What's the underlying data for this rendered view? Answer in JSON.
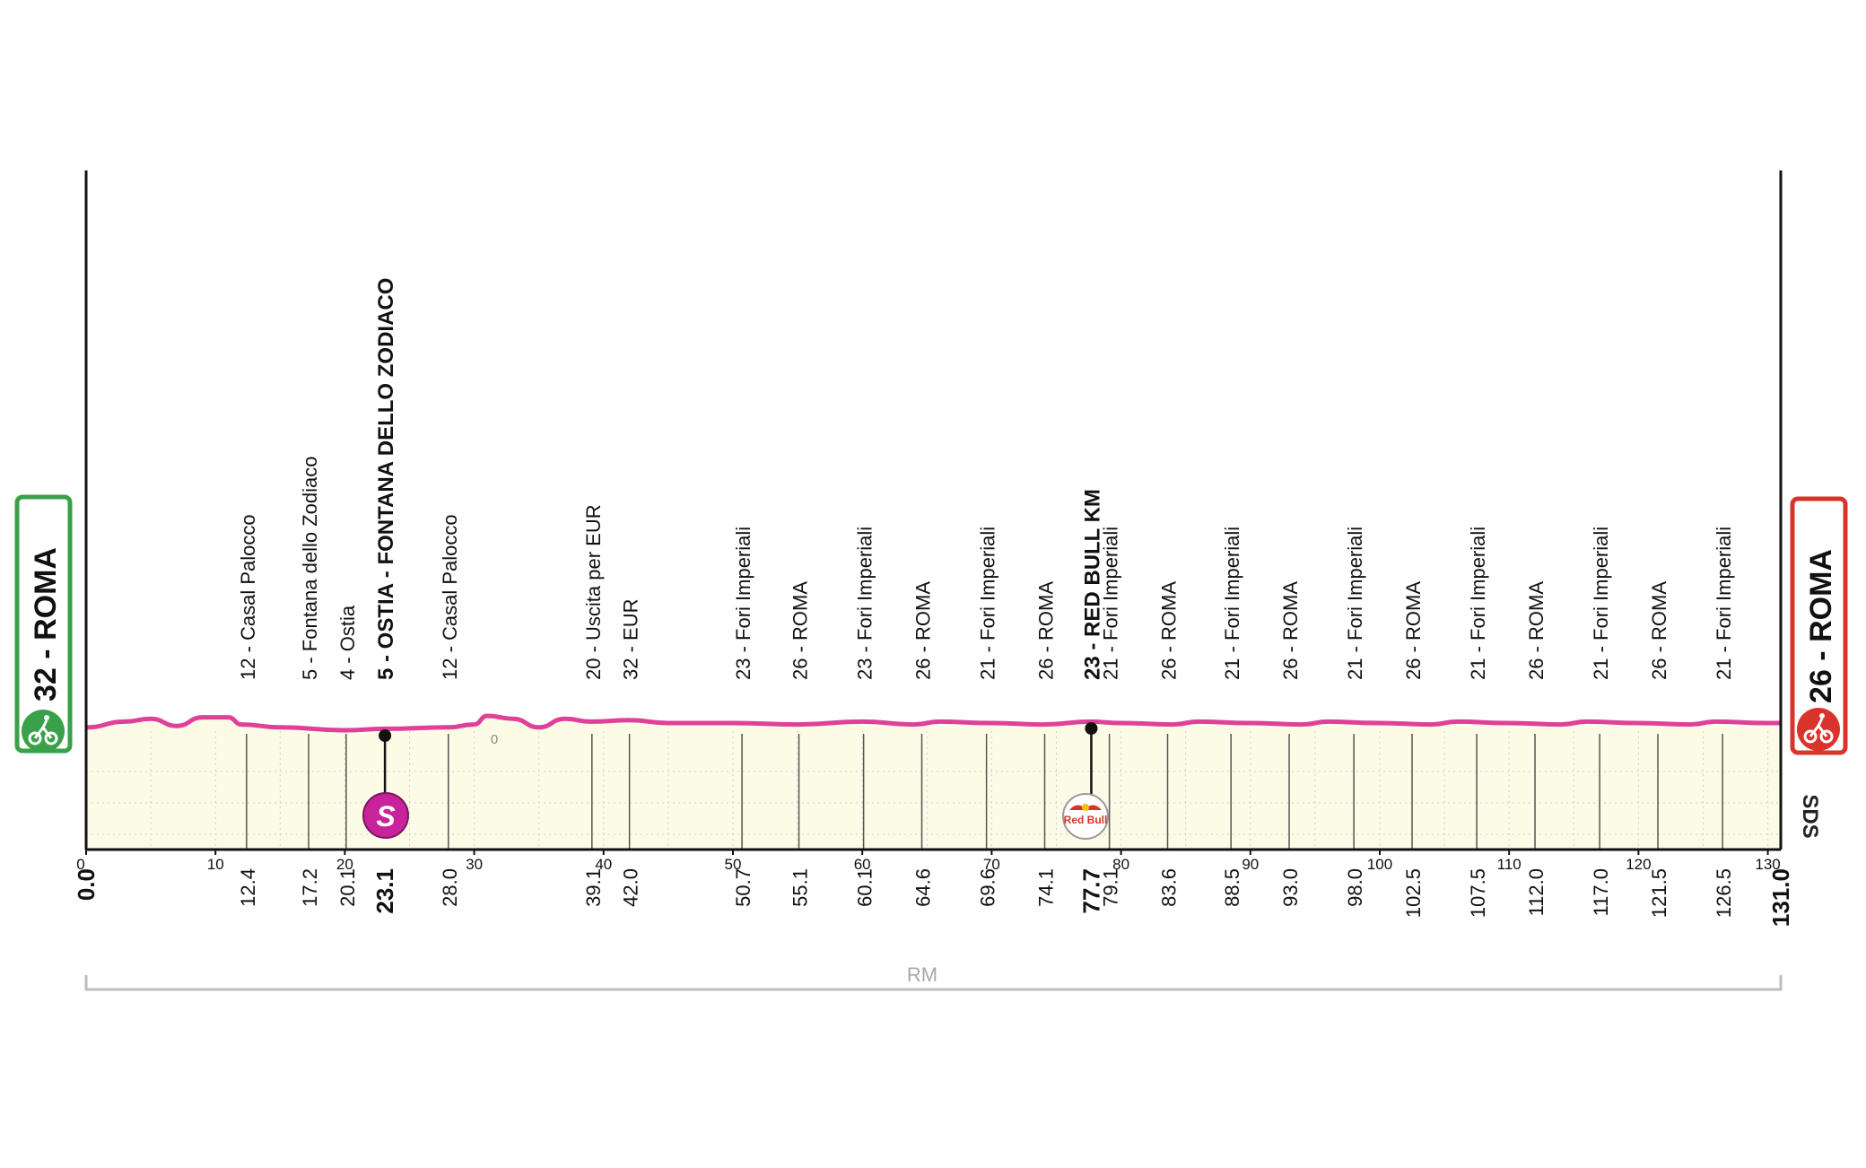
{
  "colors": {
    "profile_line": "#e0409a",
    "profile_fill": "#fcfbe6",
    "start_green": "#3aa14a",
    "finish_red": "#d9342b",
    "sprint_magenta": "#c8239a",
    "axis": "#111111",
    "route_bar": "#bcbcbc"
  },
  "start_badge": {
    "text": "32 - ROMA",
    "icon": "green-cyclist-icon"
  },
  "finish_badge": {
    "text": "26 - ROMA",
    "icon": "red-cyclist-icon"
  },
  "sprint_badge": {
    "text": "S",
    "icon": "sprint-icon"
  },
  "redbull_badge": {
    "text": "Red Bull",
    "icon": "red-bull-logo"
  },
  "sds_text": "SDS",
  "zero_mark": "0",
  "region_text": "RM",
  "chart_data": {
    "type": "area",
    "title": "",
    "xlabel": "",
    "ylabel": "",
    "x_range": [
      0,
      131
    ],
    "km_ticks": [
      "0",
      "10",
      "20",
      "30",
      "40",
      "50",
      "60",
      "70",
      "80",
      "90",
      "100",
      "110",
      "120",
      "130"
    ],
    "grid": true,
    "profile_km": [
      0,
      3,
      5,
      7,
      9,
      11,
      12,
      15,
      20,
      23.1,
      28,
      30,
      31,
      33,
      35,
      37,
      39,
      42,
      45,
      50,
      55,
      60,
      64,
      66,
      70,
      74,
      77.7,
      80,
      84,
      86,
      90,
      94,
      96,
      100,
      104,
      106,
      110,
      114,
      116,
      120,
      124,
      126,
      130,
      131
    ],
    "profile_elev": [
      12,
      16,
      18,
      13,
      19,
      19,
      14,
      12,
      10,
      11,
      12,
      14,
      20,
      18,
      12,
      18,
      16,
      17,
      15,
      15,
      14,
      16,
      14,
      16,
      15,
      14,
      16,
      15,
      14,
      16,
      15,
      14,
      16,
      15,
      14,
      16,
      15,
      14,
      16,
      15,
      14,
      16,
      15,
      15
    ],
    "waypoints": [
      {
        "km": "0.0",
        "label": "",
        "bold": true
      },
      {
        "km": "12.4",
        "label": "12 - Casal Palocco",
        "bold": false
      },
      {
        "km": "17.2",
        "label": "5 - Fontana dello Zodiaco",
        "bold": false
      },
      {
        "km": "20.1",
        "label": "4 - Ostia",
        "bold": false
      },
      {
        "km": "23.1",
        "label": "5 - OSTIA - FONTANA DELLO ZODIACO",
        "bold": true
      },
      {
        "km": "28.0",
        "label": "12 - Casal Palocco",
        "bold": false
      },
      {
        "km": "39.1",
        "label": "20 - Uscita per EUR",
        "bold": false
      },
      {
        "km": "42.0",
        "label": "32 - EUR",
        "bold": false
      },
      {
        "km": "50.7",
        "label": "23 - Fori Imperiali",
        "bold": false
      },
      {
        "km": "55.1",
        "label": "26 - ROMA",
        "bold": false
      },
      {
        "km": "60.1",
        "label": "23 - Fori Imperiali",
        "bold": false
      },
      {
        "km": "64.6",
        "label": "26 - ROMA",
        "bold": false
      },
      {
        "km": "69.6",
        "label": "21 - Fori Imperiali",
        "bold": false
      },
      {
        "km": "74.1",
        "label": "26 - ROMA",
        "bold": false
      },
      {
        "km": "77.7",
        "label": "23 - RED BULL KM",
        "bold": true
      },
      {
        "km": "79.1",
        "label": "21 - Fori Imperiali",
        "bold": false
      },
      {
        "km": "83.6",
        "label": "26 - ROMA",
        "bold": false
      },
      {
        "km": "88.5",
        "label": "21 - Fori Imperiali",
        "bold": false
      },
      {
        "km": "93.0",
        "label": "26 - ROMA",
        "bold": false
      },
      {
        "km": "98.0",
        "label": "21 - Fori Imperiali",
        "bold": false
      },
      {
        "km": "102.5",
        "label": "26 - ROMA",
        "bold": false
      },
      {
        "km": "107.5",
        "label": "21 - Fori Imperiali",
        "bold": false
      },
      {
        "km": "112.0",
        "label": "26 - ROMA",
        "bold": false
      },
      {
        "km": "117.0",
        "label": "21 - Fori Imperiali",
        "bold": false
      },
      {
        "km": "121.5",
        "label": "26 - ROMA",
        "bold": false
      },
      {
        "km": "126.5",
        "label": "21 - Fori Imperiali",
        "bold": false
      },
      {
        "km": "131.0",
        "label": "",
        "bold": true
      }
    ]
  }
}
